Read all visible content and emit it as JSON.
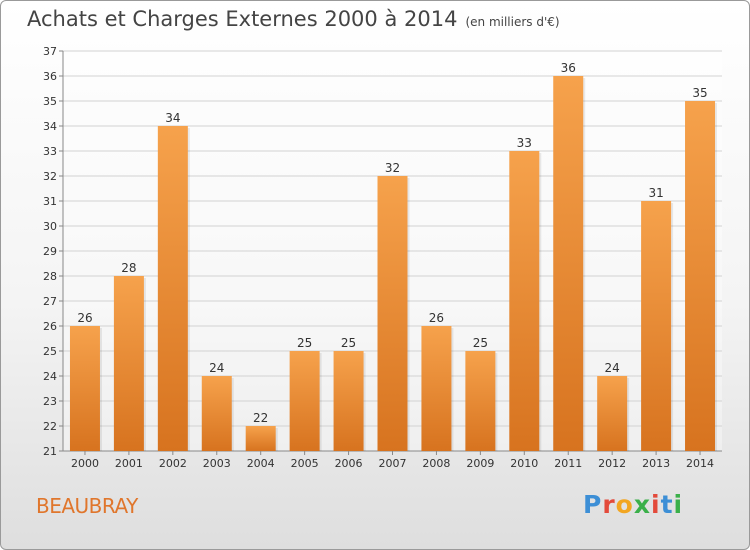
{
  "header": {
    "title": "Achats et Charges Externes 2000 à 2014",
    "subtitle": "(en milliers d'€)"
  },
  "footer": {
    "commune": "BEAUBRAY",
    "brand_letters": [
      "P",
      "r",
      "o",
      "x",
      "i",
      "t",
      "i"
    ]
  },
  "colors": {
    "bar_light": "#f6a24c",
    "bar_dark": "#d7731f",
    "brand": [
      "#3d8fd6",
      "#e34a3b",
      "#f2a622",
      "#3bb04a",
      "#e34a3b",
      "#3d8fd6",
      "#3bb04a"
    ]
  },
  "chart_data": {
    "type": "bar",
    "title": "Achats et Charges Externes 2000 à 2014",
    "subtitle": "(en milliers d'€)",
    "categories": [
      "2000",
      "2001",
      "2002",
      "2003",
      "2004",
      "2005",
      "2006",
      "2007",
      "2008",
      "2009",
      "2010",
      "2011",
      "2012",
      "2013",
      "2014"
    ],
    "values": [
      26,
      28,
      34,
      24,
      22,
      25,
      25,
      32,
      26,
      25,
      33,
      36,
      24,
      31,
      35
    ],
    "ylim": [
      21,
      37
    ],
    "yticks": [
      21,
      22,
      23,
      24,
      25,
      26,
      27,
      28,
      29,
      30,
      31,
      32,
      33,
      34,
      35,
      36,
      37
    ],
    "grid": true,
    "xlabel": "",
    "ylabel": ""
  }
}
